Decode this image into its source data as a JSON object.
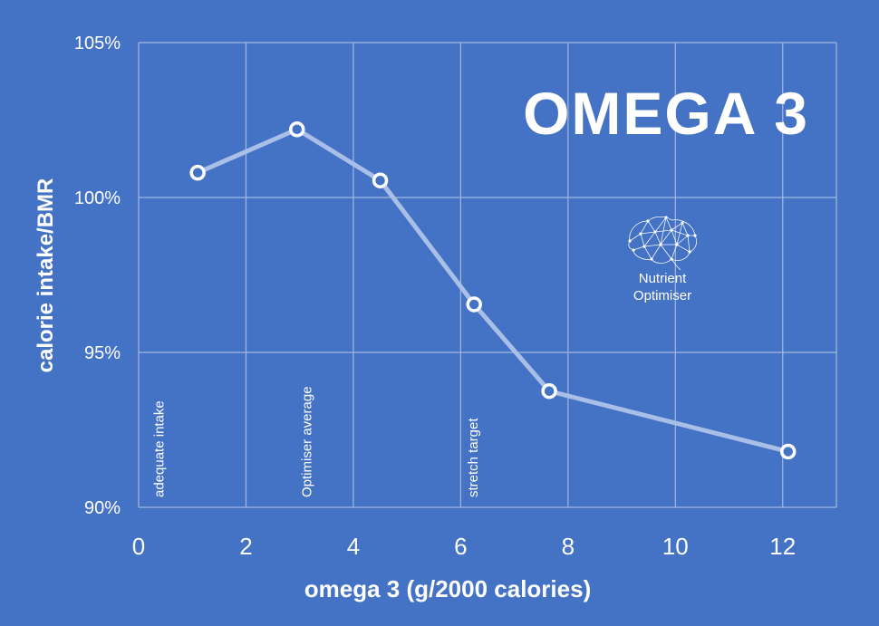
{
  "chart_data": {
    "type": "line",
    "title": "OMEGA 3",
    "xlabel": "omega 3 (g/2000 calories)",
    "ylabel": "calorie intake/BMR",
    "xlim": [
      0,
      13
    ],
    "ylim": [
      90,
      105
    ],
    "x_ticks": [
      0,
      2,
      4,
      6,
      8,
      10,
      12
    ],
    "y_ticks": [
      {
        "value": 90,
        "label": "90%"
      },
      {
        "value": 95,
        "label": "95%"
      },
      {
        "value": 100,
        "label": "100%"
      },
      {
        "value": 105,
        "label": "105%"
      }
    ],
    "grid": true,
    "series": [
      {
        "name": "calorie intake/BMR",
        "x": [
          1.1,
          2.95,
          4.5,
          6.25,
          7.65,
          12.1
        ],
        "y": [
          100.8,
          102.2,
          100.55,
          96.55,
          93.75,
          91.8
        ]
      }
    ],
    "annotations": [
      {
        "text": "adequate intake",
        "x": 0.5
      },
      {
        "text": "Optimiser average",
        "x": 3.25
      },
      {
        "text": "stretch target",
        "x": 6.35
      }
    ]
  },
  "logo": {
    "line1": "Nutrient",
    "line2": "Optimiser"
  },
  "colors": {
    "background": "#4472c4",
    "grid": "#a4b8e0",
    "line": "#a9bfe8",
    "text": "#ffffff"
  }
}
